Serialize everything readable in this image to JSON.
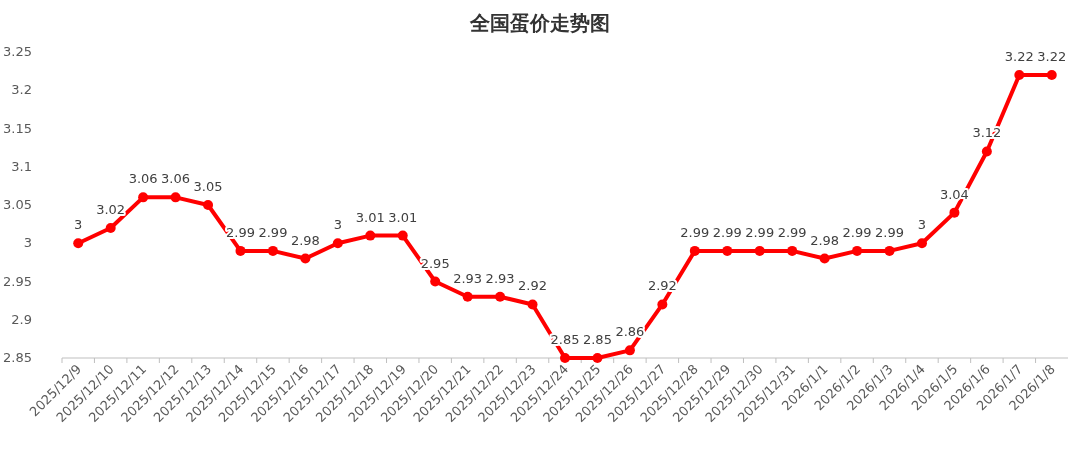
{
  "chart_data": {
    "type": "line",
    "title": "全国蛋价走势图",
    "categories": [
      "2025/12/9",
      "2025/12/10",
      "2025/12/11",
      "2025/12/12",
      "2025/12/13",
      "2025/12/14",
      "2025/12/15",
      "2025/12/16",
      "2025/12/17",
      "2025/12/18",
      "2025/12/19",
      "2025/12/20",
      "2025/12/21",
      "2025/12/22",
      "2025/12/23",
      "2025/12/24",
      "2025/12/25",
      "2025/12/26",
      "2025/12/27",
      "2025/12/28",
      "2025/12/29",
      "2025/12/30",
      "2025/12/31",
      "2026/1/1",
      "2026/1/2",
      "2026/1/3",
      "2026/1/4",
      "2026/1/5",
      "2026/1/6",
      "2026/1/7",
      "2026/1/8"
    ],
    "series": [
      {
        "color": "#ff0000",
        "values": [
          3,
          3.02,
          3.06,
          3.06,
          3.05,
          2.99,
          2.99,
          2.98,
          3,
          3.01,
          3.01,
          2.95,
          2.93,
          2.93,
          2.92,
          2.85,
          2.85,
          2.86,
          2.92,
          2.99,
          2.99,
          2.99,
          2.99,
          2.98,
          2.99,
          2.99,
          3,
          3.04,
          3.12,
          3.22,
          3.22
        ]
      }
    ],
    "ylim": [
      2.85,
      3.25
    ],
    "yticks": [
      2.85,
      2.9,
      2.95,
      3,
      3.05,
      3.1,
      3.15,
      3.2,
      3.25
    ],
    "data_labels": true,
    "marker": "circle",
    "line_style": "solid",
    "grid": false
  }
}
